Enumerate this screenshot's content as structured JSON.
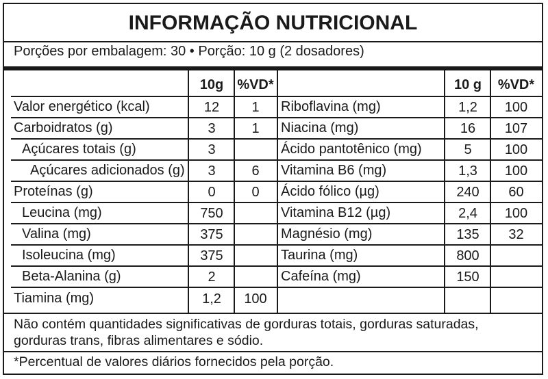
{
  "title": "INFORMAÇÃO NUTRICIONAL",
  "servings": "Porções por embalagem: 30 • Porção: 10 g (2 dosadores)",
  "left_header": {
    "amount": "10g",
    "vd": "%VD*"
  },
  "right_header": {
    "amount": "10 g",
    "vd": "%VD*"
  },
  "left_rows": [
    {
      "name": "Valor energético (kcal)",
      "amount": "12",
      "vd": "1"
    },
    {
      "name": "Carboidratos (g)",
      "amount": "3",
      "vd": "1"
    },
    {
      "name": "Açúcares totais (g)",
      "amount": "3",
      "vd": ""
    },
    {
      "name": "Açúcares adicionados (g)",
      "amount": "3",
      "vd": "6"
    },
    {
      "name": "Proteínas (g)",
      "amount": "0",
      "vd": "0"
    },
    {
      "name": "Leucina (mg)",
      "amount": "750",
      "vd": ""
    },
    {
      "name": "Valina (mg)",
      "amount": "375",
      "vd": ""
    },
    {
      "name": "Isoleucina (mg)",
      "amount": "375",
      "vd": ""
    },
    {
      "name": "Beta-Alanina (g)",
      "amount": "2",
      "vd": ""
    },
    {
      "name": "Tiamina (mg)",
      "amount": "1,2",
      "vd": "100"
    }
  ],
  "right_rows": [
    {
      "name": "Riboflavina (mg)",
      "amount": "1,2",
      "vd": "100"
    },
    {
      "name": "Niacina (mg)",
      "amount": "16",
      "vd": "107"
    },
    {
      "name": "Ácido pantotênico (mg)",
      "amount": "5",
      "vd": "100"
    },
    {
      "name": "Vitamina B6 (mg)",
      "amount": "1,3",
      "vd": "100"
    },
    {
      "name": "Ácido fólico (µg)",
      "amount": "240",
      "vd": "60"
    },
    {
      "name": "Vitamina B12 (µg)",
      "amount": "2,4",
      "vd": "100"
    },
    {
      "name": "Magnésio (mg)",
      "amount": "135",
      "vd": "32"
    },
    {
      "name": "Taurina (mg)",
      "amount": "800",
      "vd": ""
    },
    {
      "name": "Cafeína (mg)",
      "amount": "150",
      "vd": ""
    }
  ],
  "footer_note_1": "Não contém quantidades significativas de gorduras totais, gorduras saturadas, gorduras trans, fibras alimentares e sódio.",
  "footer_note_2": "*Percentual de valores diários fornecidos pela porção."
}
